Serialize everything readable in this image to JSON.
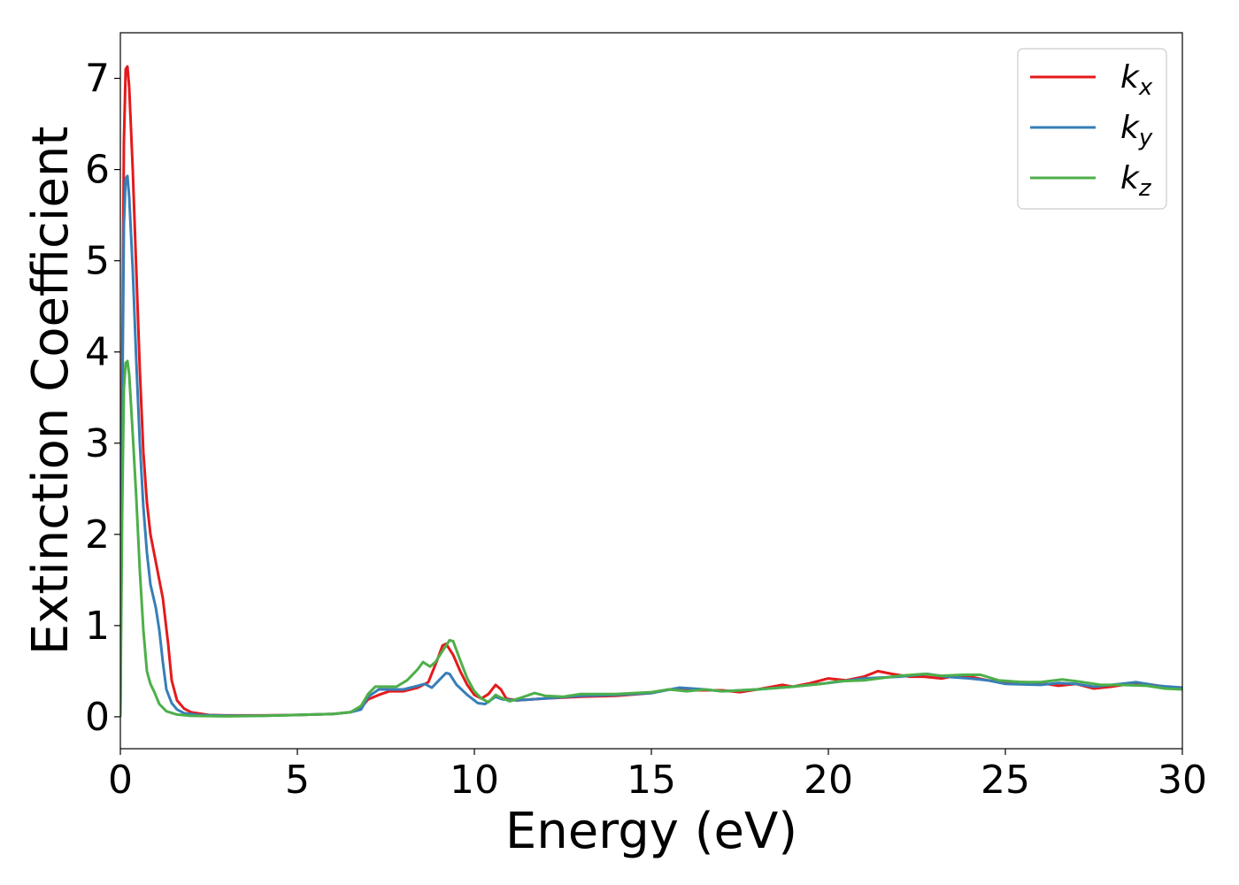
{
  "chart_data": {
    "type": "line",
    "xlabel": "Energy (eV)",
    "ylabel": "Extinction Coefficient",
    "xlim": [
      0,
      30
    ],
    "ylim": [
      -0.35,
      7.5
    ],
    "xticks": [
      0,
      5,
      10,
      15,
      20,
      25,
      30
    ],
    "yticks": [
      0,
      1,
      2,
      3,
      4,
      5,
      6,
      7
    ],
    "xtick_labels": [
      "0",
      "5",
      "10",
      "15",
      "20",
      "25",
      "30"
    ],
    "ytick_labels": [
      "0",
      "1",
      "2",
      "3",
      "4",
      "5",
      "6",
      "7"
    ],
    "grid": false,
    "legend_position": "top-right",
    "series": [
      {
        "name": "k_x",
        "legend_base": "k",
        "legend_sub": "x",
        "color": "#e41a1c",
        "points": [
          [
            0,
            0
          ],
          [
            0.05,
            3.5
          ],
          [
            0.1,
            6.3
          ],
          [
            0.15,
            7.1
          ],
          [
            0.2,
            7.13
          ],
          [
            0.25,
            6.9
          ],
          [
            0.35,
            6.0
          ],
          [
            0.45,
            4.9
          ],
          [
            0.55,
            3.8
          ],
          [
            0.65,
            2.9
          ],
          [
            0.75,
            2.35
          ],
          [
            0.85,
            2.0
          ],
          [
            1.0,
            1.7
          ],
          [
            1.2,
            1.3
          ],
          [
            1.35,
            0.8
          ],
          [
            1.45,
            0.4
          ],
          [
            1.6,
            0.18
          ],
          [
            1.8,
            0.09
          ],
          [
            2.0,
            0.05
          ],
          [
            2.5,
            0.02
          ],
          [
            3,
            0.015
          ],
          [
            4,
            0.015
          ],
          [
            5,
            0.02
          ],
          [
            6,
            0.03
          ],
          [
            6.5,
            0.05
          ],
          [
            6.8,
            0.1
          ],
          [
            7.0,
            0.19
          ],
          [
            7.3,
            0.24
          ],
          [
            7.6,
            0.28
          ],
          [
            8.0,
            0.28
          ],
          [
            8.4,
            0.32
          ],
          [
            8.7,
            0.38
          ],
          [
            8.95,
            0.62
          ],
          [
            9.1,
            0.78
          ],
          [
            9.2,
            0.8
          ],
          [
            9.4,
            0.68
          ],
          [
            9.6,
            0.5
          ],
          [
            9.8,
            0.35
          ],
          [
            10.0,
            0.24
          ],
          [
            10.2,
            0.2
          ],
          [
            10.4,
            0.25
          ],
          [
            10.6,
            0.35
          ],
          [
            10.75,
            0.3
          ],
          [
            10.9,
            0.2
          ],
          [
            11.2,
            0.18
          ],
          [
            12,
            0.2
          ],
          [
            13,
            0.22
          ],
          [
            14,
            0.23
          ],
          [
            15,
            0.26
          ],
          [
            15.5,
            0.3
          ],
          [
            16,
            0.29
          ],
          [
            17,
            0.29
          ],
          [
            17.5,
            0.27
          ],
          [
            18,
            0.3
          ],
          [
            18.7,
            0.35
          ],
          [
            19,
            0.33
          ],
          [
            19.5,
            0.37
          ],
          [
            20,
            0.42
          ],
          [
            20.5,
            0.4
          ],
          [
            21,
            0.44
          ],
          [
            21.4,
            0.5
          ],
          [
            21.8,
            0.47
          ],
          [
            22.3,
            0.44
          ],
          [
            22.7,
            0.44
          ],
          [
            23.2,
            0.42
          ],
          [
            23.6,
            0.45
          ],
          [
            24,
            0.44
          ],
          [
            24.5,
            0.4
          ],
          [
            25,
            0.37
          ],
          [
            25.5,
            0.38
          ],
          [
            26,
            0.37
          ],
          [
            26.5,
            0.34
          ],
          [
            27,
            0.36
          ],
          [
            27.5,
            0.31
          ],
          [
            28,
            0.33
          ],
          [
            28.5,
            0.36
          ],
          [
            29,
            0.36
          ],
          [
            29.5,
            0.33
          ],
          [
            30,
            0.32
          ]
        ]
      },
      {
        "name": "k_y",
        "legend_base": "k",
        "legend_sub": "y",
        "color": "#377eb8",
        "points": [
          [
            0,
            0
          ],
          [
            0.05,
            3.2
          ],
          [
            0.1,
            5.4
          ],
          [
            0.15,
            5.9
          ],
          [
            0.2,
            5.93
          ],
          [
            0.25,
            5.7
          ],
          [
            0.35,
            4.9
          ],
          [
            0.45,
            3.9
          ],
          [
            0.55,
            3.0
          ],
          [
            0.65,
            2.3
          ],
          [
            0.75,
            1.8
          ],
          [
            0.85,
            1.45
          ],
          [
            1.0,
            1.2
          ],
          [
            1.1,
            0.95
          ],
          [
            1.2,
            0.6
          ],
          [
            1.3,
            0.3
          ],
          [
            1.45,
            0.15
          ],
          [
            1.6,
            0.08
          ],
          [
            1.8,
            0.04
          ],
          [
            2.2,
            0.02
          ],
          [
            3,
            0.012
          ],
          [
            4,
            0.012
          ],
          [
            5,
            0.02
          ],
          [
            6,
            0.03
          ],
          [
            6.5,
            0.05
          ],
          [
            6.8,
            0.08
          ],
          [
            7.0,
            0.22
          ],
          [
            7.3,
            0.3
          ],
          [
            7.6,
            0.3
          ],
          [
            8.0,
            0.3
          ],
          [
            8.4,
            0.34
          ],
          [
            8.6,
            0.36
          ],
          [
            8.8,
            0.32
          ],
          [
            9.0,
            0.4
          ],
          [
            9.2,
            0.48
          ],
          [
            9.3,
            0.47
          ],
          [
            9.5,
            0.35
          ],
          [
            9.8,
            0.24
          ],
          [
            10.1,
            0.15
          ],
          [
            10.3,
            0.14
          ],
          [
            10.6,
            0.22
          ],
          [
            10.8,
            0.19
          ],
          [
            11.2,
            0.18
          ],
          [
            12,
            0.2
          ],
          [
            13,
            0.23
          ],
          [
            14,
            0.24
          ],
          [
            15,
            0.26
          ],
          [
            15.8,
            0.32
          ],
          [
            16.5,
            0.3
          ],
          [
            17,
            0.28
          ],
          [
            18,
            0.3
          ],
          [
            19,
            0.33
          ],
          [
            20,
            0.37
          ],
          [
            21,
            0.42
          ],
          [
            22,
            0.44
          ],
          [
            22.8,
            0.47
          ],
          [
            23.3,
            0.44
          ],
          [
            24,
            0.42
          ],
          [
            24.5,
            0.4
          ],
          [
            25,
            0.36
          ],
          [
            26,
            0.35
          ],
          [
            26.5,
            0.37
          ],
          [
            27,
            0.36
          ],
          [
            27.5,
            0.33
          ],
          [
            28,
            0.35
          ],
          [
            28.7,
            0.38
          ],
          [
            29.3,
            0.34
          ],
          [
            30,
            0.32
          ]
        ]
      },
      {
        "name": "k_z",
        "legend_base": "k",
        "legend_sub": "z",
        "color": "#4daf4a",
        "points": [
          [
            0,
            0
          ],
          [
            0.05,
            2.2
          ],
          [
            0.1,
            3.6
          ],
          [
            0.15,
            3.88
          ],
          [
            0.2,
            3.9
          ],
          [
            0.25,
            3.75
          ],
          [
            0.35,
            3.1
          ],
          [
            0.45,
            2.4
          ],
          [
            0.55,
            1.6
          ],
          [
            0.65,
            0.95
          ],
          [
            0.75,
            0.5
          ],
          [
            0.85,
            0.36
          ],
          [
            0.95,
            0.28
          ],
          [
            1.1,
            0.14
          ],
          [
            1.3,
            0.06
          ],
          [
            1.6,
            0.025
          ],
          [
            2.0,
            0.01
          ],
          [
            3,
            0.005
          ],
          [
            4,
            0.01
          ],
          [
            5,
            0.02
          ],
          [
            6,
            0.03
          ],
          [
            6.5,
            0.05
          ],
          [
            6.8,
            0.12
          ],
          [
            7.0,
            0.25
          ],
          [
            7.2,
            0.33
          ],
          [
            7.5,
            0.33
          ],
          [
            7.8,
            0.33
          ],
          [
            8.1,
            0.4
          ],
          [
            8.4,
            0.52
          ],
          [
            8.55,
            0.6
          ],
          [
            8.75,
            0.55
          ],
          [
            8.9,
            0.6
          ],
          [
            9.1,
            0.72
          ],
          [
            9.3,
            0.84
          ],
          [
            9.4,
            0.83
          ],
          [
            9.6,
            0.62
          ],
          [
            9.8,
            0.42
          ],
          [
            10.0,
            0.28
          ],
          [
            10.2,
            0.2
          ],
          [
            10.4,
            0.16
          ],
          [
            10.6,
            0.24
          ],
          [
            10.75,
            0.21
          ],
          [
            11.0,
            0.17
          ],
          [
            11.4,
            0.22
          ],
          [
            11.7,
            0.26
          ],
          [
            12,
            0.23
          ],
          [
            12.5,
            0.22
          ],
          [
            13,
            0.25
          ],
          [
            13.5,
            0.25
          ],
          [
            14,
            0.25
          ],
          [
            15,
            0.27
          ],
          [
            15.5,
            0.3
          ],
          [
            16,
            0.28
          ],
          [
            16.5,
            0.3
          ],
          [
            17,
            0.28
          ],
          [
            18,
            0.3
          ],
          [
            19,
            0.33
          ],
          [
            19.8,
            0.36
          ],
          [
            20.3,
            0.39
          ],
          [
            21,
            0.4
          ],
          [
            22,
            0.45
          ],
          [
            22.7,
            0.47
          ],
          [
            23.2,
            0.45
          ],
          [
            23.8,
            0.46
          ],
          [
            24.3,
            0.46
          ],
          [
            24.8,
            0.4
          ],
          [
            25.5,
            0.38
          ],
          [
            26,
            0.38
          ],
          [
            26.6,
            0.41
          ],
          [
            27,
            0.39
          ],
          [
            27.7,
            0.35
          ],
          [
            28.3,
            0.35
          ],
          [
            29,
            0.34
          ],
          [
            29.5,
            0.31
          ],
          [
            30,
            0.3
          ]
        ]
      }
    ]
  }
}
